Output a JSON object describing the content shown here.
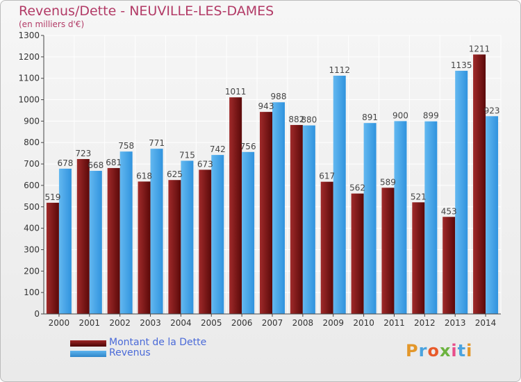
{
  "chart_data": {
    "type": "bar",
    "title": "Revenus/Dette - NEUVILLE-LES-DAMES",
    "subtitle": "(en milliers d'€)",
    "categories": [
      "2000",
      "2001",
      "2002",
      "2003",
      "2004",
      "2005",
      "2006",
      "2007",
      "2008",
      "2009",
      "2010",
      "2011",
      "2012",
      "2013",
      "2014"
    ],
    "series": [
      {
        "name": "Montant de la Dette",
        "color": "#7a1414",
        "values": [
          519,
          723,
          681,
          618,
          625,
          673,
          1011,
          943,
          882,
          617,
          562,
          589,
          521,
          453,
          1211
        ]
      },
      {
        "name": "Revenus",
        "color": "#3ea0e4",
        "values": [
          678,
          668,
          758,
          771,
          715,
          742,
          756,
          988,
          880,
          1112,
          891,
          900,
          899,
          1135,
          923
        ]
      }
    ],
    "ylim": [
      0,
      1300
    ],
    "yticks": [
      0,
      100,
      200,
      300,
      400,
      500,
      600,
      700,
      800,
      900,
      1000,
      1100,
      1200,
      1300
    ],
    "grid": true,
    "legend": "bottom-left"
  },
  "logo_text": "Proxiti"
}
